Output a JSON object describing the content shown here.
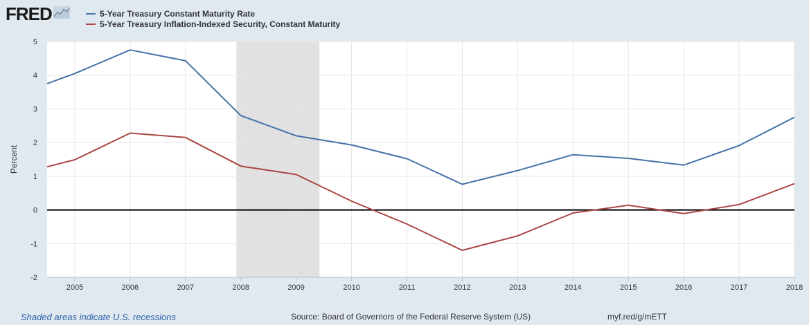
{
  "brand": {
    "logo_text": "FRED",
    "logo_icon": "line-graph-icon"
  },
  "footer": {
    "note": "Shaded areas indicate U.S. recessions",
    "source": "Source: Board of Governors of the Federal Reserve System (US)",
    "url": "myf.red/g/mETT"
  },
  "colors": {
    "background": "#e1e9f0",
    "plot_background": "#ffffff",
    "recession_shading": "#e1e1e1",
    "series_1": "#4572a7",
    "series_2": "#aa4643",
    "zero_line": "#000000"
  },
  "chart_data": {
    "type": "line",
    "title": "",
    "xlabel": "",
    "ylabel": "Percent",
    "x": [
      2004.5,
      2005,
      2006,
      2007,
      2008,
      2009,
      2010,
      2011,
      2012,
      2013,
      2014,
      2015,
      2016,
      2017,
      2018
    ],
    "series": [
      {
        "name": "5-Year Treasury Constant Maturity Rate",
        "color": "#4572a7",
        "values": [
          3.75,
          4.05,
          4.75,
          4.43,
          2.8,
          2.2,
          1.93,
          1.52,
          0.76,
          1.17,
          1.64,
          1.53,
          1.33,
          1.91,
          2.75
        ]
      },
      {
        "name": "5-Year Treasury Inflation-Indexed Security, Constant Maturity",
        "color": "#aa4643",
        "values": [
          1.28,
          1.49,
          2.28,
          2.15,
          1.3,
          1.05,
          0.26,
          -0.42,
          -1.2,
          -0.77,
          -0.09,
          0.14,
          -0.11,
          0.16,
          0.78
        ]
      }
    ],
    "xlim": [
      2004.5,
      2018.0
    ],
    "ylim": [
      -2,
      5
    ],
    "x_tick_labels": [
      "2005",
      "2006",
      "2007",
      "2008",
      "2009",
      "2010",
      "2011",
      "2012",
      "2013",
      "2014",
      "2015",
      "2016",
      "2017",
      "2018"
    ],
    "y_tick_labels": [
      "5",
      "4",
      "3",
      "2",
      "1",
      "0",
      "-1",
      "-2"
    ],
    "recessions": [
      [
        2007.92,
        2009.42
      ]
    ],
    "grid": true,
    "legend_position": "top-left"
  }
}
